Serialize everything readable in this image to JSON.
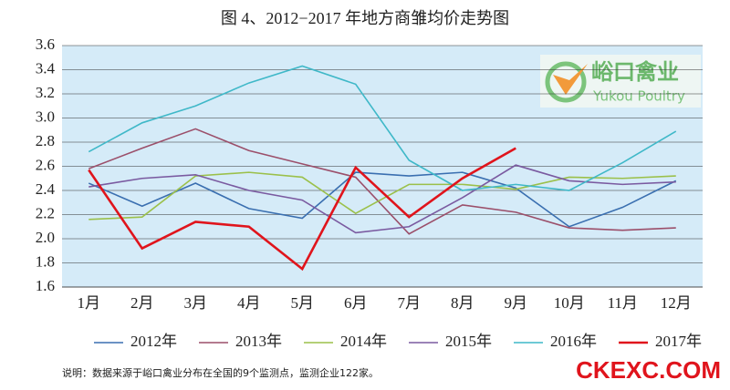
{
  "chart_data": {
    "type": "line",
    "title": "图 4、2012−2017 年地方商雏均价走势图",
    "note": "说明：数据来源于峪口禽业分布在全国的9个监测点，监测企业122家。",
    "logo": {
      "name": "峪口禽业",
      "subtitle": "Yukou Poultry"
    },
    "watermark": "CKEXC.COM",
    "categories": [
      "1月",
      "2月",
      "3月",
      "4月",
      "5月",
      "6月",
      "7月",
      "8月",
      "9月",
      "10月",
      "11月",
      "12月"
    ],
    "series": [
      {
        "name": "2012年",
        "color": "#3a6fb0",
        "values": [
          2.46,
          2.27,
          2.46,
          2.25,
          2.17,
          2.55,
          2.52,
          2.55,
          2.42,
          2.1,
          2.26,
          2.48
        ]
      },
      {
        "name": "2013年",
        "color": "#9b4f6a",
        "values": [
          2.58,
          2.75,
          2.91,
          2.73,
          2.62,
          2.51,
          2.04,
          2.28,
          2.22,
          2.09,
          2.07,
          2.09
        ]
      },
      {
        "name": "2014年",
        "color": "#9bc04a",
        "values": [
          2.16,
          2.18,
          2.52,
          2.55,
          2.51,
          2.21,
          2.45,
          2.45,
          2.41,
          2.51,
          2.5,
          2.52
        ]
      },
      {
        "name": "2015年",
        "color": "#7a5aa0",
        "values": [
          2.43,
          2.5,
          2.53,
          2.4,
          2.32,
          2.05,
          2.1,
          2.34,
          2.61,
          2.48,
          2.45,
          2.47
        ]
      },
      {
        "name": "2016年",
        "color": "#3fb8c8",
        "values": [
          2.72,
          2.96,
          3.1,
          3.29,
          3.43,
          3.28,
          2.65,
          2.4,
          2.45,
          2.4,
          2.63,
          2.89
        ]
      },
      {
        "name": "2017年",
        "color": "#e0141c",
        "values": [
          2.57,
          1.92,
          2.14,
          2.1,
          1.75,
          2.59,
          2.18,
          2.5,
          2.75,
          null,
          null,
          null
        ]
      }
    ],
    "ylim": [
      1.6,
      3.6
    ],
    "yticks": [
      {
        "value": 1.6,
        "label": "1.6"
      },
      {
        "value": 1.8,
        "label": "1.8"
      },
      {
        "value": 2.0,
        "label": "2.0"
      },
      {
        "value": 2.2,
        "label": "2.2"
      },
      {
        "value": 2.4,
        "label": "2.4"
      },
      {
        "value": 2.6,
        "label": "2.6"
      },
      {
        "value": 2.8,
        "label": "2.8"
      },
      {
        "value": 3.0,
        "label": "3.0"
      },
      {
        "value": 3.2,
        "label": "3.2"
      },
      {
        "value": 3.4,
        "label": "3.4"
      },
      {
        "value": 3.6,
        "label": "3.6"
      }
    ],
    "grid": true
  }
}
